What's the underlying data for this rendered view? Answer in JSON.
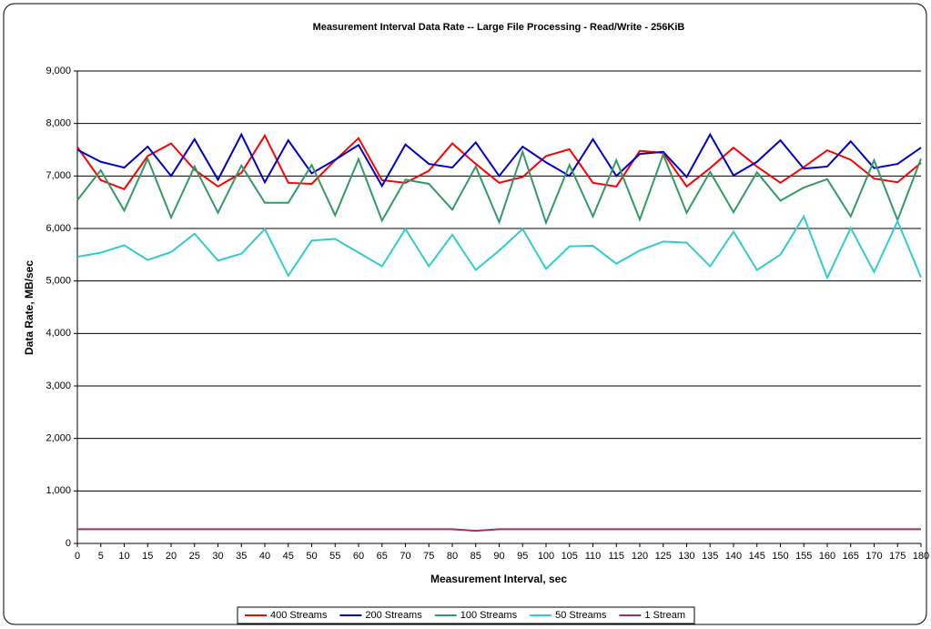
{
  "chart_data": {
    "type": "line",
    "title": "Measurement Interval Data Rate -- Large File Processing - Read/Write - 256KiB",
    "x_label": "Measurement Interval, sec",
    "y_label": "Data Rate, MB/sec",
    "x": [
      0,
      5,
      10,
      15,
      20,
      25,
      30,
      35,
      40,
      45,
      50,
      55,
      60,
      65,
      70,
      75,
      80,
      85,
      90,
      95,
      100,
      105,
      110,
      115,
      120,
      125,
      130,
      135,
      140,
      145,
      150,
      155,
      160,
      165,
      170,
      175,
      180
    ],
    "xlim": [
      0,
      180
    ],
    "xticks": [
      0,
      5,
      10,
      15,
      20,
      25,
      30,
      35,
      40,
      45,
      50,
      55,
      60,
      65,
      70,
      75,
      80,
      85,
      90,
      95,
      100,
      105,
      110,
      115,
      120,
      125,
      130,
      135,
      140,
      145,
      150,
      155,
      160,
      165,
      170,
      175,
      180
    ],
    "ylim": [
      0,
      9000
    ],
    "yticks": [
      0,
      {
        "value": 1000,
        "label": "1,000"
      },
      {
        "value": 2000,
        "label": "2,000"
      },
      {
        "value": 3000,
        "label": "3,000"
      },
      {
        "value": 4000,
        "label": "4,000"
      },
      {
        "value": 5000,
        "label": "5,000"
      },
      {
        "value": 6000,
        "label": "6,000"
      },
      {
        "value": 7000,
        "label": "7,000"
      },
      {
        "value": 8000,
        "label": "8,000"
      },
      {
        "value": 9000,
        "label": "9,000"
      }
    ],
    "grid": true,
    "legend": "bottom",
    "series": [
      {
        "name": "400 Streams",
        "color": "#ff0000",
        "values": [
          7550,
          6920,
          6750,
          7380,
          7620,
          7120,
          6800,
          7060,
          7770,
          6870,
          6850,
          7300,
          7720,
          6920,
          6870,
          7100,
          7620,
          7230,
          6870,
          6980,
          7380,
          7510,
          6870,
          6800,
          7480,
          7440,
          6800,
          7150,
          7540,
          7180,
          6870,
          7170,
          7490,
          7310,
          6950,
          6880,
          7250
        ]
      },
      {
        "name": "200 Streams",
        "color": "#0000cc",
        "values": [
          7500,
          7270,
          7160,
          7560,
          7000,
          7700,
          6930,
          7790,
          6880,
          7680,
          7050,
          7310,
          7590,
          6810,
          7600,
          7230,
          7160,
          7640,
          7000,
          7560,
          7260,
          7000,
          7700,
          7000,
          7420,
          7460,
          6980,
          7790,
          7010,
          7270,
          7680,
          7140,
          7180,
          7660,
          7150,
          7230,
          7540
        ]
      },
      {
        "name": "100 Streams",
        "color": "#339966",
        "values": [
          6540,
          7110,
          6340,
          7330,
          6210,
          7180,
          6300,
          7200,
          6490,
          6490,
          7210,
          6250,
          7320,
          6150,
          6930,
          6850,
          6360,
          7180,
          6120,
          7460,
          6110,
          7210,
          6230,
          7300,
          6170,
          7410,
          6300,
          7080,
          6310,
          7070,
          6530,
          6780,
          6940,
          6230,
          7300,
          6160,
          7330
        ]
      },
      {
        "name": "50 Streams",
        "color": "#33cccc",
        "values": [
          5460,
          5540,
          5680,
          5400,
          5550,
          5900,
          5390,
          5520,
          5990,
          5100,
          5770,
          5800,
          5540,
          5280,
          5990,
          5280,
          5880,
          5210,
          5580,
          5990,
          5230,
          5660,
          5670,
          5330,
          5580,
          5750,
          5730,
          5280,
          5940,
          5210,
          5500,
          6230,
          5060,
          6010,
          5170,
          6140,
          5070
        ]
      },
      {
        "name": "1 Stream",
        "color": "#993366",
        "values": [
          270,
          270,
          270,
          270,
          270,
          270,
          270,
          270,
          270,
          270,
          270,
          270,
          270,
          270,
          270,
          270,
          270,
          240,
          270,
          270,
          270,
          270,
          270,
          270,
          270,
          270,
          270,
          270,
          270,
          270,
          270,
          270,
          270,
          270,
          270,
          270,
          270
        ]
      }
    ]
  }
}
